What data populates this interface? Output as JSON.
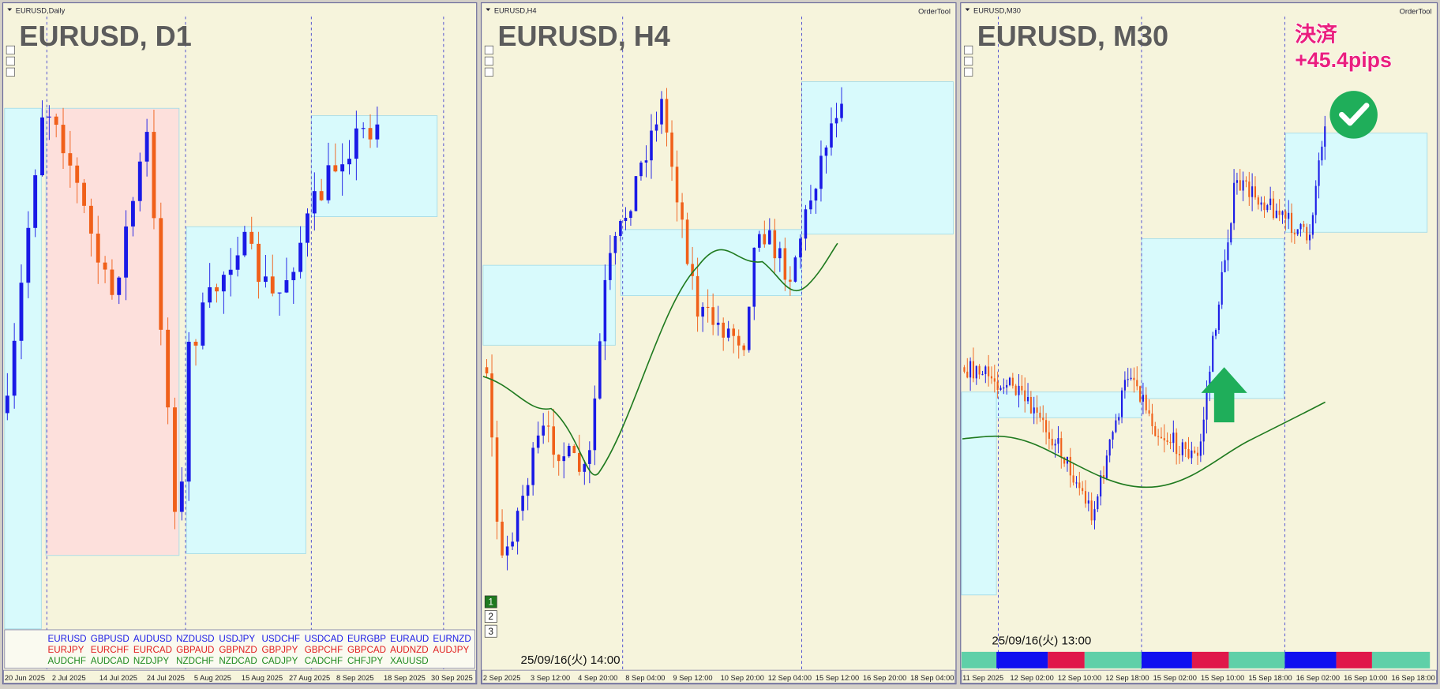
{
  "panels": [
    {
      "window_title": "EURUSD,Daily",
      "chart_label": "EURUSD, D1",
      "x_axis_labels": [
        "20 Jun 2025",
        "2 Jul 2025",
        "14 Jul 2025",
        "24 Jul 2025",
        "5 Aug 2025",
        "15 Aug 2025",
        "27 Aug 2025",
        "8 Sep 2025",
        "18 Sep 2025",
        "30 Sep 2025"
      ],
      "symbols": [
        [
          "EURUSD",
          "GBPUSD",
          "AUDUSD",
          "NZDUSD",
          "USDJPY",
          "USDCHF",
          "USDCAD",
          "EURGBP",
          "EURAUD",
          "EURNZD"
        ],
        [
          "EURJPY",
          "EURCHF",
          "EURCAD",
          "GBPAUD",
          "GBPNZD",
          "GBPJPY",
          "GBPCHF",
          "GBPCAD",
          "AUDNZD",
          "AUDJPY"
        ],
        [
          "AUDCHF",
          "AUDCAD",
          "NZDJPY",
          "NZDCHF",
          "NZDCAD",
          "CADJPY",
          "CADCHF",
          "CHFJPY",
          "XAUUSD"
        ]
      ]
    },
    {
      "window_title": "EURUSD,H4",
      "chart_label": "EURUSD, H4",
      "order_tool": "OrderTool",
      "timestamp": "25/09/16(火) 14:00",
      "buttons": [
        "1",
        "2",
        "3"
      ],
      "x_axis_labels": [
        "2 Sep 2025",
        "3 Sep 12:00",
        "4 Sep 20:00",
        "8 Sep 04:00",
        "9 Sep 12:00",
        "10 Sep 20:00",
        "12 Sep 04:00",
        "15 Sep 12:00",
        "16 Sep 20:00",
        "18 Sep 04:00"
      ]
    },
    {
      "window_title": "EURUSD,M30",
      "chart_label": "EURUSD, M30",
      "order_tool": "OrderTool",
      "timestamp": "25/09/16(火) 13:00",
      "annotation": {
        "line1": "決済",
        "line2": "+45.4pips"
      },
      "x_axis_labels": [
        "11 Sep 2025",
        "12 Sep 02:00",
        "12 Sep 10:00",
        "12 Sep 18:00",
        "15 Sep 02:00",
        "15 Sep 10:00",
        "15 Sep 18:00",
        "16 Sep 02:00",
        "16 Sep 10:00",
        "16 Sep 18:00"
      ]
    }
  ]
}
